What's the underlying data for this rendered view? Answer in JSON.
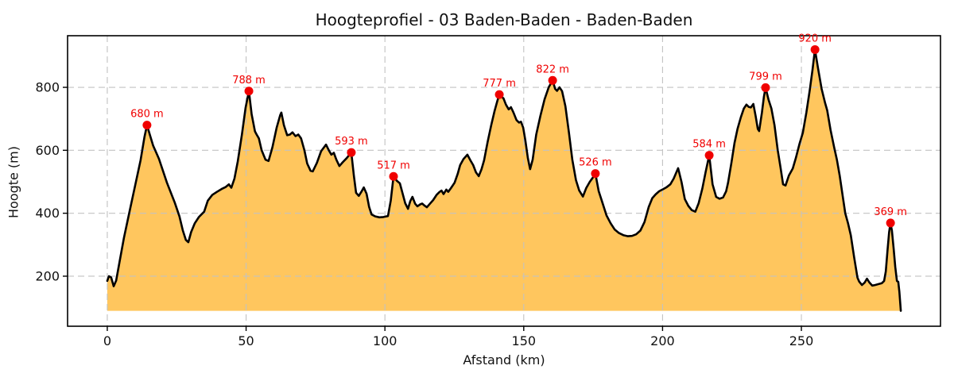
{
  "chart_data": {
    "type": "area",
    "title": "Hoogteprofiel - 03 Baden-Baden - Baden-Baden",
    "xlabel": "Afstand (km)",
    "ylabel": "Hoogte (m)",
    "xlim": [
      -14.3,
      300.1
    ],
    "ylim": [
      41,
      964
    ],
    "xticks": [
      0,
      50,
      100,
      150,
      200,
      250
    ],
    "yticks": [
      200,
      400,
      600,
      800
    ],
    "grid": true,
    "legend": false,
    "baseline_m": 90,
    "route_length_km": 285.8,
    "colors": {
      "fill": "#FFA500",
      "fill_opacity": 0.63,
      "line": "#000000",
      "grid": "#c2c2c2",
      "marker": "#f00000",
      "peak_label": "#f00000",
      "text": "#111111"
    },
    "peaks": [
      {
        "km": 14.3,
        "m": 680,
        "label": "680 m"
      },
      {
        "km": 51.0,
        "m": 788,
        "label": "788 m"
      },
      {
        "km": 87.9,
        "m": 593,
        "label": "593 m"
      },
      {
        "km": 103.1,
        "m": 517,
        "label": "517 m"
      },
      {
        "km": 141.2,
        "m": 777,
        "label": "777 m"
      },
      {
        "km": 160.4,
        "m": 822,
        "label": "822 m"
      },
      {
        "km": 175.8,
        "m": 526,
        "label": "526 m"
      },
      {
        "km": 216.8,
        "m": 584,
        "label": "584 m"
      },
      {
        "km": 237.1,
        "m": 799,
        "label": "799 m"
      },
      {
        "km": 254.9,
        "m": 920,
        "label": "920 m"
      },
      {
        "km": 282.1,
        "m": 369,
        "label": "369 m"
      }
    ],
    "profile": [
      [
        0.0,
        185
      ],
      [
        0.6,
        200
      ],
      [
        1.4,
        196
      ],
      [
        2.3,
        168
      ],
      [
        3.2,
        186
      ],
      [
        4.5,
        250
      ],
      [
        6.0,
        322
      ],
      [
        8.0,
        405
      ],
      [
        10.0,
        487
      ],
      [
        12.0,
        568
      ],
      [
        13.4,
        642
      ],
      [
        14.3,
        680
      ],
      [
        15.3,
        650
      ],
      [
        16.5,
        615
      ],
      [
        18.6,
        573
      ],
      [
        21.5,
        497
      ],
      [
        24.3,
        434
      ],
      [
        26.0,
        390
      ],
      [
        27.2,
        346
      ],
      [
        28.3,
        315
      ],
      [
        29.2,
        308
      ],
      [
        30.2,
        340
      ],
      [
        31.5,
        368
      ],
      [
        33.0,
        388
      ],
      [
        34.9,
        405
      ],
      [
        36.2,
        440
      ],
      [
        37.8,
        458
      ],
      [
        39.5,
        468
      ],
      [
        41.2,
        477
      ],
      [
        42.6,
        483
      ],
      [
        43.8,
        492
      ],
      [
        44.7,
        481
      ],
      [
        45.8,
        510
      ],
      [
        47.0,
        565
      ],
      [
        48.5,
        650
      ],
      [
        49.8,
        735
      ],
      [
        51.0,
        788
      ],
      [
        52.0,
        715
      ],
      [
        53.2,
        660
      ],
      [
        53.8,
        650
      ],
      [
        54.6,
        638
      ],
      [
        55.6,
        600
      ],
      [
        57.0,
        570
      ],
      [
        58.1,
        566
      ],
      [
        59.5,
        610
      ],
      [
        61.0,
        672
      ],
      [
        62.3,
        712
      ],
      [
        62.7,
        720
      ],
      [
        63.6,
        680
      ],
      [
        64.8,
        648
      ],
      [
        65.8,
        650
      ],
      [
        66.7,
        657
      ],
      [
        67.8,
        645
      ],
      [
        68.8,
        650
      ],
      [
        69.8,
        638
      ],
      [
        71.0,
        600
      ],
      [
        72.0,
        558
      ],
      [
        73.2,
        535
      ],
      [
        74.0,
        533
      ],
      [
        75.5,
        560
      ],
      [
        77.0,
        597
      ],
      [
        78.8,
        618
      ],
      [
        79.8,
        600
      ],
      [
        80.7,
        586
      ],
      [
        81.6,
        592
      ],
      [
        82.5,
        570
      ],
      [
        83.6,
        550
      ],
      [
        84.8,
        562
      ],
      [
        86.2,
        575
      ],
      [
        87.9,
        593
      ],
      [
        88.8,
        520
      ],
      [
        89.6,
        465
      ],
      [
        90.6,
        455
      ],
      [
        91.5,
        468
      ],
      [
        92.4,
        482
      ],
      [
        93.4,
        462
      ],
      [
        94.3,
        420
      ],
      [
        95.2,
        396
      ],
      [
        96.5,
        390
      ],
      [
        98.0,
        387
      ],
      [
        99.5,
        388
      ],
      [
        101.1,
        391
      ],
      [
        102.1,
        440
      ],
      [
        103.1,
        517
      ],
      [
        104.3,
        503
      ],
      [
        105.4,
        495
      ],
      [
        106.4,
        462
      ],
      [
        107.3,
        432
      ],
      [
        108.3,
        414
      ],
      [
        109.1,
        438
      ],
      [
        109.9,
        452
      ],
      [
        110.9,
        430
      ],
      [
        111.7,
        422
      ],
      [
        112.7,
        428
      ],
      [
        113.4,
        431
      ],
      [
        114.3,
        424
      ],
      [
        115.1,
        419
      ],
      [
        116.2,
        430
      ],
      [
        117.4,
        442
      ],
      [
        118.6,
        458
      ],
      [
        119.6,
        467
      ],
      [
        120.4,
        472
      ],
      [
        121.1,
        461
      ],
      [
        122.1,
        475
      ],
      [
        122.8,
        468
      ],
      [
        123.8,
        480
      ],
      [
        125.1,
        497
      ],
      [
        126.2,
        525
      ],
      [
        127.1,
        553
      ],
      [
        128.3,
        572
      ],
      [
        129.7,
        586
      ],
      [
        130.8,
        568
      ],
      [
        131.8,
        553
      ],
      [
        132.8,
        530
      ],
      [
        133.8,
        518
      ],
      [
        134.8,
        540
      ],
      [
        135.7,
        568
      ],
      [
        137.0,
        627
      ],
      [
        138.3,
        680
      ],
      [
        139.5,
        725
      ],
      [
        140.5,
        757
      ],
      [
        141.2,
        777
      ],
      [
        142.0,
        770
      ],
      [
        142.7,
        765
      ],
      [
        143.6,
        745
      ],
      [
        144.6,
        730
      ],
      [
        145.4,
        737
      ],
      [
        146.3,
        720
      ],
      [
        147.4,
        696
      ],
      [
        148.3,
        688
      ],
      [
        149.0,
        691
      ],
      [
        149.8,
        672
      ],
      [
        150.6,
        630
      ],
      [
        151.5,
        575
      ],
      [
        152.3,
        540
      ],
      [
        153.2,
        570
      ],
      [
        154.5,
        650
      ],
      [
        156.0,
        710
      ],
      [
        157.5,
        762
      ],
      [
        159.0,
        800
      ],
      [
        160.4,
        822
      ],
      [
        161.3,
        795
      ],
      [
        162.0,
        789
      ],
      [
        162.9,
        800
      ],
      [
        163.8,
        788
      ],
      [
        165.0,
        740
      ],
      [
        166.3,
        655
      ],
      [
        167.5,
        570
      ],
      [
        168.8,
        505
      ],
      [
        170.0,
        472
      ],
      [
        171.3,
        453
      ],
      [
        172.5,
        480
      ],
      [
        173.8,
        500
      ],
      [
        174.8,
        512
      ],
      [
        175.8,
        526
      ],
      [
        177.0,
        470
      ],
      [
        178.3,
        435
      ],
      [
        179.8,
        393
      ],
      [
        181.3,
        368
      ],
      [
        182.8,
        348
      ],
      [
        184.3,
        337
      ],
      [
        186.0,
        330
      ],
      [
        187.5,
        327
      ],
      [
        189.0,
        328
      ],
      [
        190.5,
        333
      ],
      [
        192.0,
        345
      ],
      [
        193.5,
        372
      ],
      [
        195.0,
        420
      ],
      [
        196.3,
        448
      ],
      [
        197.5,
        460
      ],
      [
        198.8,
        470
      ],
      [
        200.3,
        477
      ],
      [
        201.5,
        483
      ],
      [
        202.8,
        492
      ],
      [
        204.0,
        510
      ],
      [
        205.6,
        543
      ],
      [
        206.8,
        500
      ],
      [
        208.0,
        445
      ],
      [
        209.3,
        423
      ],
      [
        210.5,
        410
      ],
      [
        211.8,
        405
      ],
      [
        213.0,
        432
      ],
      [
        214.3,
        478
      ],
      [
        215.5,
        530
      ],
      [
        216.8,
        584
      ],
      [
        218.0,
        492
      ],
      [
        219.3,
        452
      ],
      [
        220.5,
        446
      ],
      [
        221.8,
        450
      ],
      [
        222.9,
        470
      ],
      [
        223.6,
        497
      ],
      [
        224.8,
        560
      ],
      [
        225.9,
        623
      ],
      [
        227.0,
        668
      ],
      [
        228.2,
        705
      ],
      [
        229.3,
        733
      ],
      [
        230.2,
        745
      ],
      [
        231.0,
        738
      ],
      [
        231.8,
        736
      ],
      [
        232.7,
        747
      ],
      [
        233.5,
        710
      ],
      [
        234.3,
        668
      ],
      [
        234.8,
        661
      ],
      [
        235.8,
        720
      ],
      [
        236.5,
        770
      ],
      [
        237.1,
        799
      ],
      [
        238.2,
        760
      ],
      [
        239.2,
        733
      ],
      [
        240.3,
        680
      ],
      [
        241.5,
        600
      ],
      [
        242.5,
        545
      ],
      [
        243.4,
        492
      ],
      [
        244.3,
        488
      ],
      [
        245.5,
        520
      ],
      [
        246.9,
        542
      ],
      [
        248.0,
        575
      ],
      [
        249.3,
        620
      ],
      [
        250.5,
        655
      ],
      [
        251.8,
        720
      ],
      [
        253.0,
        790
      ],
      [
        254.0,
        855
      ],
      [
        254.9,
        920
      ],
      [
        256.0,
        860
      ],
      [
        257.3,
        795
      ],
      [
        258.5,
        752
      ],
      [
        259.3,
        727
      ],
      [
        260.5,
        665
      ],
      [
        261.8,
        610
      ],
      [
        262.8,
        570
      ],
      [
        263.8,
        520
      ],
      [
        264.8,
        460
      ],
      [
        265.8,
        400
      ],
      [
        266.8,
        368
      ],
      [
        267.8,
        330
      ],
      [
        269.0,
        260
      ],
      [
        270.2,
        195
      ],
      [
        270.8,
        183
      ],
      [
        271.8,
        172
      ],
      [
        272.8,
        180
      ],
      [
        273.6,
        192
      ],
      [
        274.5,
        180
      ],
      [
        275.5,
        170
      ],
      [
        276.5,
        172
      ],
      [
        277.8,
        175
      ],
      [
        279.0,
        178
      ],
      [
        279.8,
        185
      ],
      [
        280.4,
        215
      ],
      [
        281.0,
        280
      ],
      [
        281.6,
        340
      ],
      [
        282.1,
        369
      ],
      [
        282.6,
        345
      ],
      [
        283.2,
        290
      ],
      [
        283.8,
        230
      ],
      [
        284.4,
        185
      ],
      [
        284.9,
        182
      ],
      [
        285.3,
        150
      ],
      [
        285.8,
        90
      ]
    ]
  }
}
